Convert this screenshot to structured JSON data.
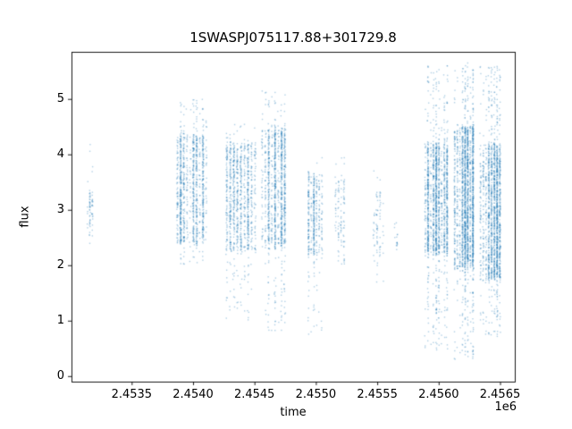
{
  "chart_data": {
    "type": "scatter",
    "title": "1SWASPJ075117.88+301729.8",
    "xlabel": "time",
    "ylabel": "flux",
    "offset_text": "1e6",
    "x_scale_factor": 1000000,
    "xlim": [
      2.45301,
      2.45662
    ],
    "ylim": [
      -0.1,
      5.85
    ],
    "xticks": [
      2.4535,
      2.454,
      2.4545,
      2.455,
      2.4555,
      2.456,
      2.4565
    ],
    "xtick_labels": [
      "2.4535",
      "2.4540",
      "2.4545",
      "2.4550",
      "2.4555",
      "2.4560",
      "2.4565"
    ],
    "yticks": [
      0,
      1,
      2,
      3,
      4,
      5
    ],
    "ytick_labels": [
      "0",
      "1",
      "2",
      "3",
      "4",
      "5"
    ],
    "grid": false,
    "legend": null,
    "marker_color": "#1f77b4",
    "marker_alpha": 0.35,
    "marker_size_px": 1.4,
    "clusters": [
      {
        "x0": 2.45313,
        "x1": 2.45319,
        "n": 70,
        "cols": 3,
        "core": [
          2.55,
          3.35
        ],
        "core_frac": 0.72,
        "tail": [
          2.35,
          4.2
        ]
      },
      {
        "x0": 2.45386,
        "x1": 2.45412,
        "n": 1100,
        "cols": 10,
        "core": [
          2.4,
          4.35
        ],
        "core_frac": 0.82,
        "tail": [
          2.0,
          5.0
        ]
      },
      {
        "x0": 2.45426,
        "x1": 2.45452,
        "n": 1000,
        "cols": 9,
        "core": [
          2.25,
          4.2
        ],
        "core_frac": 0.84,
        "tail": [
          1.0,
          4.55
        ]
      },
      {
        "x0": 2.45455,
        "x1": 2.45476,
        "n": 1100,
        "cols": 8,
        "core": [
          2.3,
          4.45
        ],
        "core_frac": 0.82,
        "tail": [
          0.8,
          5.15
        ]
      },
      {
        "x0": 2.45493,
        "x1": 2.45506,
        "n": 420,
        "cols": 6,
        "core": [
          2.2,
          3.65
        ],
        "core_frac": 0.78,
        "tail": [
          0.75,
          3.95
        ]
      },
      {
        "x0": 2.45515,
        "x1": 2.45524,
        "n": 110,
        "cols": 4,
        "core": [
          2.3,
          3.55
        ],
        "core_frac": 0.7,
        "tail": [
          1.85,
          3.95
        ]
      },
      {
        "x0": 2.45546,
        "x1": 2.45556,
        "n": 80,
        "cols": 4,
        "core": [
          2.2,
          3.3
        ],
        "core_frac": 0.65,
        "tail": [
          1.65,
          3.75
        ]
      },
      {
        "x0": 2.45563,
        "x1": 2.45567,
        "n": 16,
        "cols": 2,
        "core": [
          2.3,
          2.75
        ],
        "core_frac": 0.9,
        "tail": [
          2.25,
          2.8
        ]
      },
      {
        "x0": 2.45588,
        "x1": 2.45608,
        "n": 1600,
        "cols": 9,
        "core": [
          2.2,
          4.2
        ],
        "core_frac": 0.78,
        "tail": [
          0.45,
          5.6
        ]
      },
      {
        "x0": 2.45612,
        "x1": 2.45629,
        "n": 2000,
        "cols": 8,
        "core": [
          1.95,
          4.5
        ],
        "core_frac": 0.78,
        "tail": [
          0.3,
          5.65
        ]
      },
      {
        "x0": 2.45633,
        "x1": 2.45651,
        "n": 1700,
        "cols": 8,
        "core": [
          1.75,
          4.15
        ],
        "core_frac": 0.78,
        "tail": [
          0.7,
          5.6
        ]
      }
    ]
  }
}
